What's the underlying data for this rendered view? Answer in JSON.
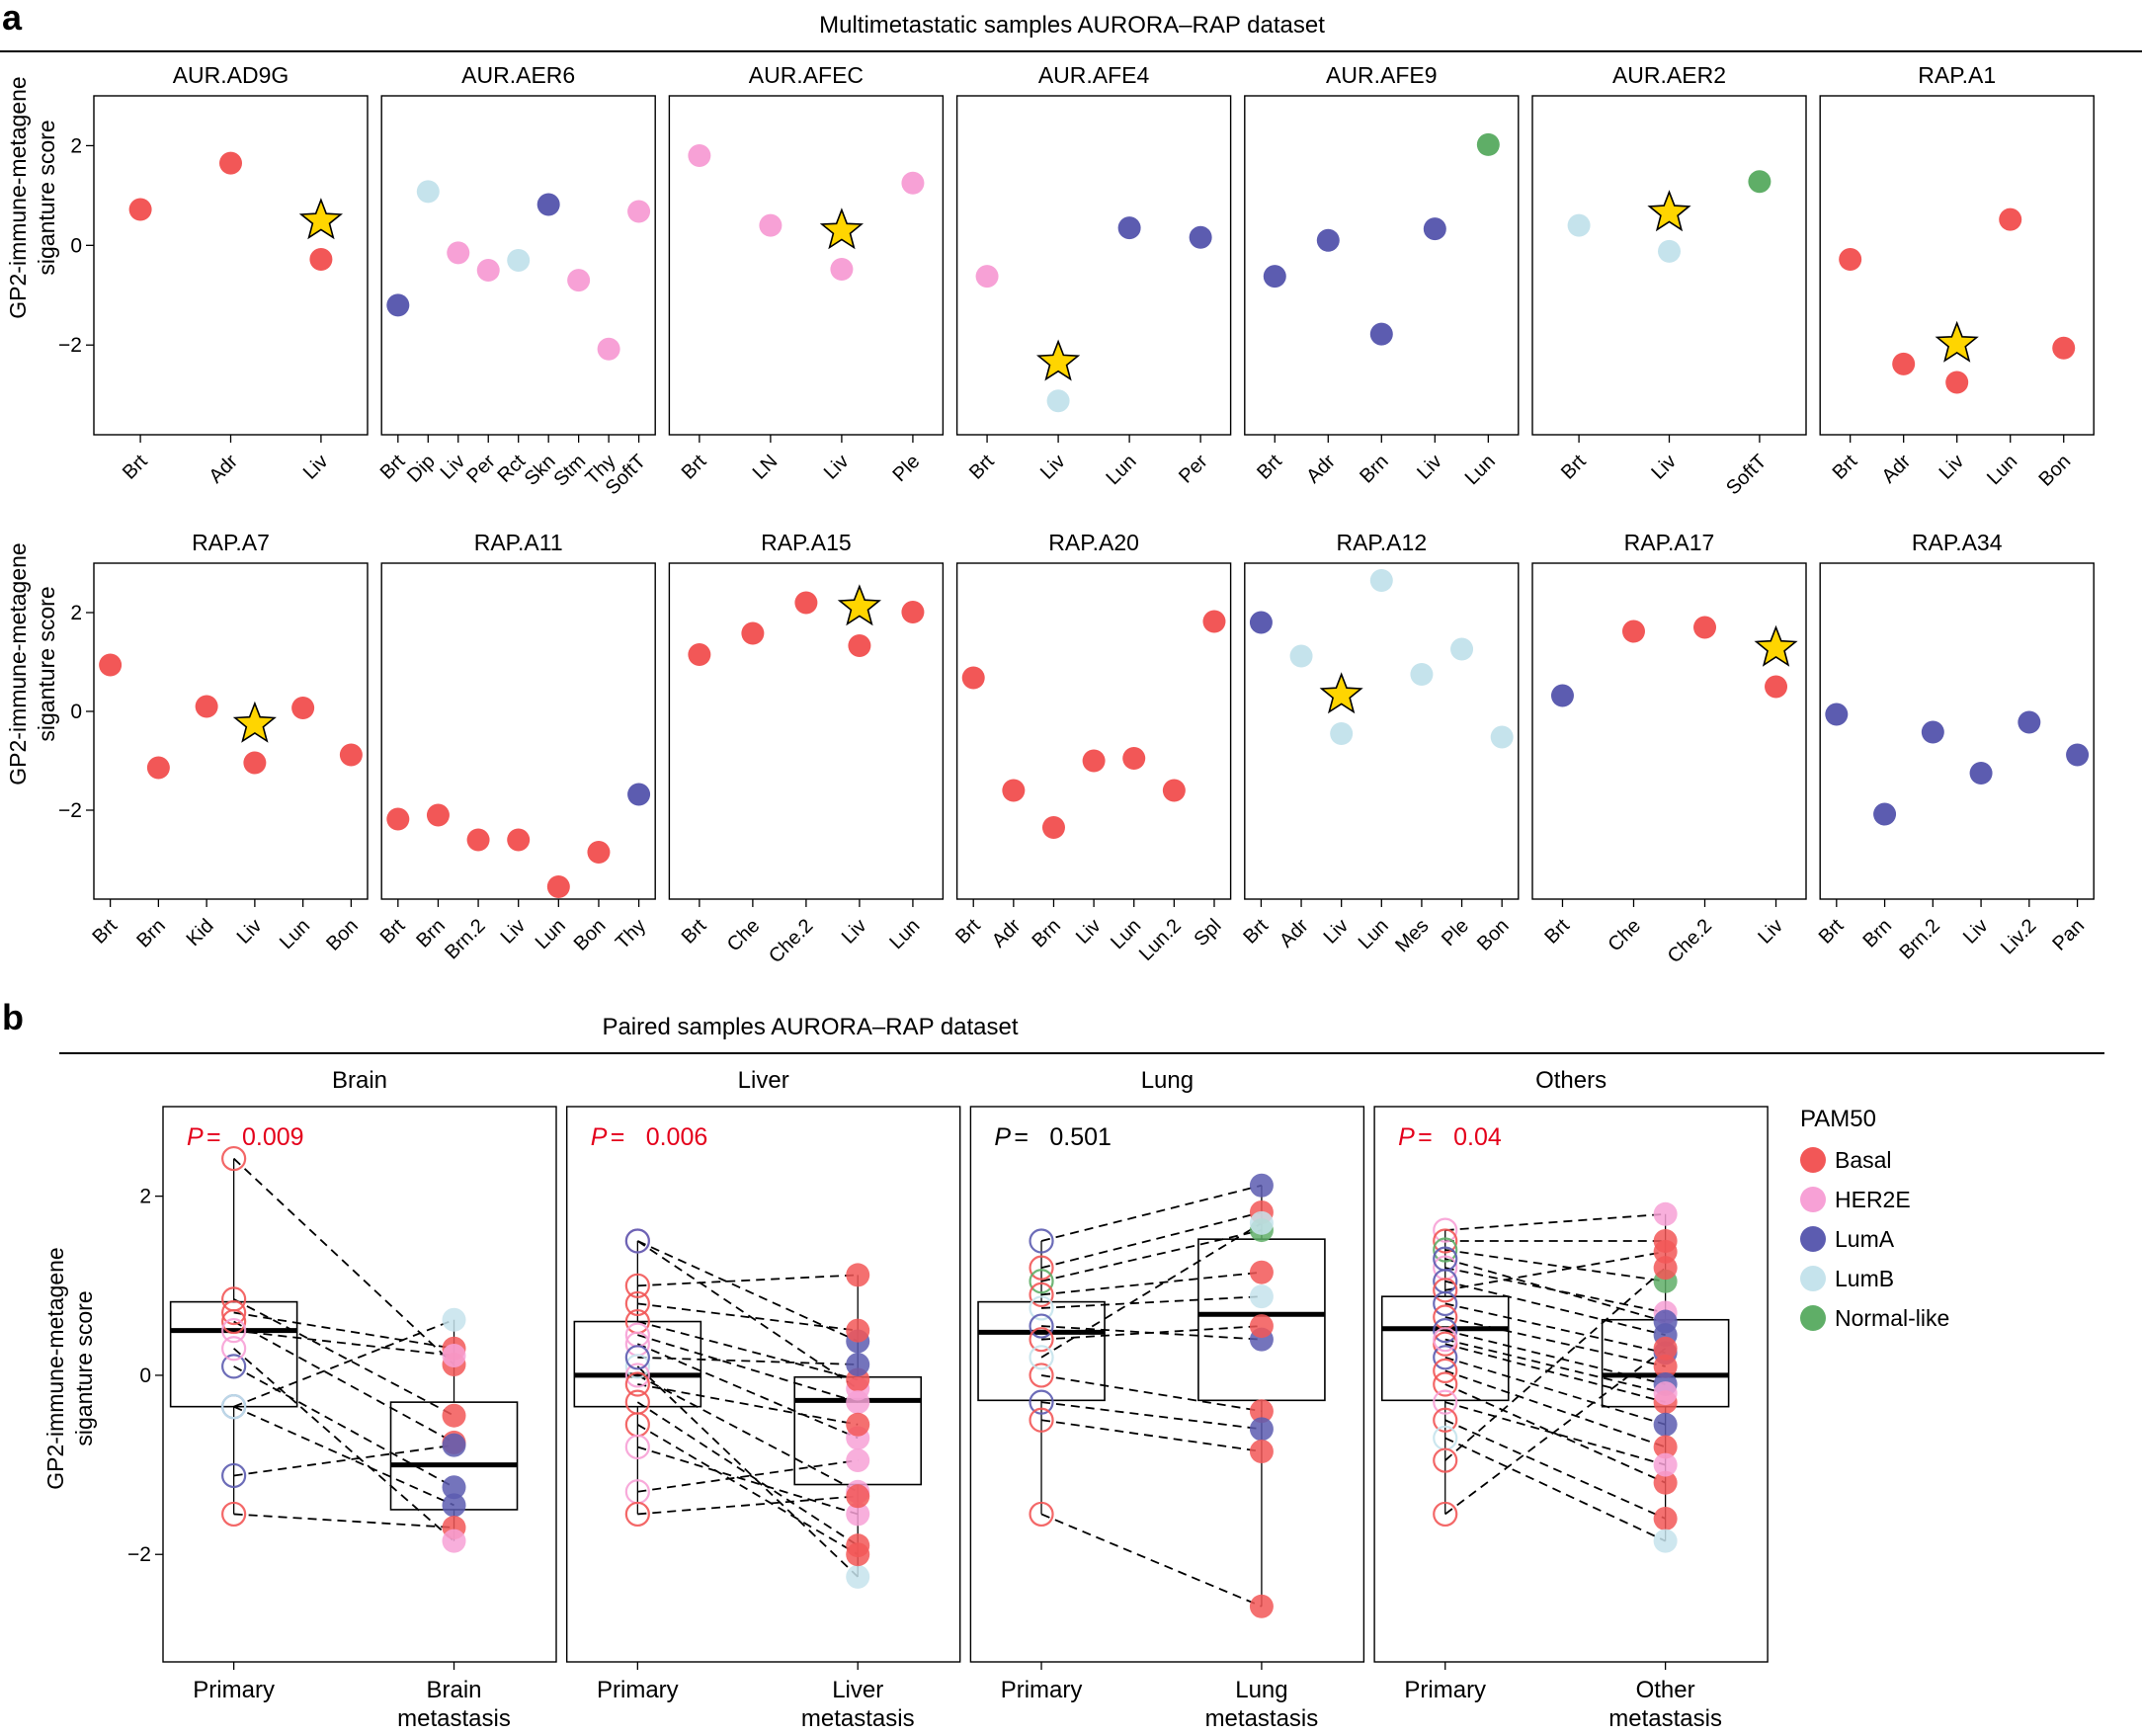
{
  "colors": {
    "Basal": "#f25757",
    "HER2E": "#f7a1d6",
    "LumA": "#5c5cb0",
    "LumB": "#c5e3ec",
    "Normal-like": "#5fae67",
    "star": "#ffd500",
    "p_significant": "#e4001b",
    "p_ns": "#000000"
  },
  "panel_a": {
    "letter": "a",
    "title": "Multimetastatic samples AURORA–RAP dataset",
    "ylabel_line1": "GP2-immune-metagene",
    "ylabel_line2": "siganture score"
  },
  "panel_b": {
    "letter": "b",
    "title": "Paired samples AURORA–RAP dataset",
    "ylabel_line1": "GP2-immune-metagene",
    "ylabel_line2": "siganture score",
    "p_prefix": "P =",
    "legend_title": "PAM50",
    "legend_items": [
      "Basal",
      "HER2E",
      "LumA",
      "LumB",
      "Normal-like"
    ]
  },
  "chart_data": [
    {
      "type": "scatter",
      "panel": "a",
      "title": "Multimetastatic samples AURORA–RAP dataset",
      "ylabel": "GP2-immune-metagene siganture score",
      "ylim": [
        -3.8,
        3.0
      ],
      "yticks": [
        -2,
        0,
        2
      ],
      "note": "Star marks the liver metastasis sample",
      "subplots": [
        {
          "title": "AUR.AD9G",
          "categories": [
            "Brt",
            "Adr",
            "Liv"
          ],
          "values": [
            0.72,
            1.65,
            -0.28
          ],
          "subtypes": [
            "Basal",
            "Basal",
            "Basal"
          ],
          "star": 2
        },
        {
          "title": "AUR.AER6",
          "categories": [
            "Brt",
            "Dip",
            "Liv",
            "Per",
            "Rct",
            "Skn",
            "Stm",
            "Thy",
            "SoftT"
          ],
          "values": [
            -1.2,
            1.08,
            -0.15,
            -0.5,
            -0.3,
            0.82,
            -0.7,
            -2.08,
            0.68
          ],
          "subtypes": [
            "LumA",
            "LumB",
            "HER2E",
            "HER2E",
            "LumB",
            "LumA",
            "HER2E",
            "HER2E",
            "HER2E"
          ],
          "star": null
        },
        {
          "title": "AUR.AFEC",
          "categories": [
            "Brt",
            "LN",
            "Liv",
            "Ple"
          ],
          "values": [
            1.8,
            0.4,
            -0.48,
            1.25
          ],
          "subtypes": [
            "HER2E",
            "HER2E",
            "HER2E",
            "HER2E"
          ],
          "star": 2
        },
        {
          "title": "AUR.AFE4",
          "categories": [
            "Brt",
            "Liv",
            "Lun",
            "Per"
          ],
          "values": [
            -0.62,
            -3.12,
            0.35,
            0.16
          ],
          "subtypes": [
            "HER2E",
            "LumB",
            "LumA",
            "LumA"
          ],
          "star": 1
        },
        {
          "title": "AUR.AFE9",
          "categories": [
            "Brt",
            "Adr",
            "Brn",
            "Liv",
            "Lun"
          ],
          "values": [
            -0.62,
            0.1,
            -1.78,
            0.33,
            2.02
          ],
          "subtypes": [
            "LumA",
            "LumA",
            "LumA",
            "LumA",
            "Normal-like"
          ],
          "star": null
        },
        {
          "title": "AUR.AER2",
          "categories": [
            "Brt",
            "Liv",
            "SoftT"
          ],
          "values": [
            0.4,
            -0.12,
            1.28
          ],
          "subtypes": [
            "LumB",
            "LumB",
            "Normal-like"
          ],
          "star": 1
        },
        {
          "title": "RAP.A1",
          "categories": [
            "Brt",
            "Adr",
            "Liv",
            "Lun",
            "Bon"
          ],
          "values": [
            -0.28,
            -2.38,
            -2.75,
            0.52,
            -2.06
          ],
          "subtypes": [
            "Basal",
            "Basal",
            "Basal",
            "Basal",
            "Basal"
          ],
          "star": 2
        },
        {
          "title": "RAP.A7",
          "categories": [
            "Brt",
            "Brn",
            "Kid",
            "Liv",
            "Lun",
            "Bon"
          ],
          "values": [
            0.94,
            -1.14,
            0.1,
            -1.04,
            0.07,
            -0.88
          ],
          "subtypes": [
            "Basal",
            "Basal",
            "Basal",
            "Basal",
            "Basal",
            "Basal"
          ],
          "star": 3
        },
        {
          "title": "RAP.A11",
          "categories": [
            "Brt",
            "Brn",
            "Brn.2",
            "Liv",
            "Lun",
            "Bon",
            "Thy"
          ],
          "values": [
            -2.18,
            -2.1,
            -2.6,
            -2.6,
            -3.55,
            -2.85,
            -1.68
          ],
          "subtypes": [
            "Basal",
            "Basal",
            "Basal",
            "Basal",
            "Basal",
            "Basal",
            "LumA"
          ],
          "star": null
        },
        {
          "title": "RAP.A15",
          "categories": [
            "Brt",
            "Che",
            "Che.2",
            "Liv",
            "Lun"
          ],
          "values": [
            1.15,
            1.58,
            2.2,
            1.33,
            2.01
          ],
          "subtypes": [
            "Basal",
            "Basal",
            "Basal",
            "Basal",
            "Basal"
          ],
          "star": 3
        },
        {
          "title": "RAP.A20",
          "categories": [
            "Brt",
            "Adr",
            "Brn",
            "Liv",
            "Lun",
            "Lun.2",
            "Spl"
          ],
          "values": [
            0.68,
            -1.6,
            -2.35,
            -1.0,
            -0.95,
            -1.6,
            1.82
          ],
          "subtypes": [
            "Basal",
            "Basal",
            "Basal",
            "Basal",
            "Basal",
            "Basal",
            "Basal"
          ],
          "star": null
        },
        {
          "title": "RAP.A12",
          "categories": [
            "Brt",
            "Adr",
            "Liv",
            "Lun",
            "Mes",
            "Ple",
            "Bon"
          ],
          "values": [
            1.8,
            1.12,
            -0.45,
            2.65,
            0.75,
            1.26,
            -0.52
          ],
          "subtypes": [
            "LumA",
            "LumB",
            "LumB",
            "LumB",
            "LumB",
            "LumB",
            "LumB"
          ],
          "star": 2
        },
        {
          "title": "RAP.A17",
          "categories": [
            "Brt",
            "Che",
            "Che.2",
            "Liv"
          ],
          "values": [
            0.32,
            1.62,
            1.7,
            0.5
          ],
          "subtypes": [
            "LumA",
            "Basal",
            "Basal",
            "Basal"
          ],
          "star": 3
        },
        {
          "title": "RAP.A34",
          "categories": [
            "Brt",
            "Brn",
            "Brn.2",
            "Liv",
            "Liv.2",
            "Pan"
          ],
          "values": [
            -0.06,
            -2.08,
            -0.42,
            -1.25,
            -0.22,
            -0.88
          ],
          "subtypes": [
            "LumA",
            "LumA",
            "LumA",
            "LumA",
            "LumA",
            "LumA"
          ],
          "star": null
        }
      ]
    },
    {
      "type": "boxplot",
      "panel": "b",
      "title": "Paired samples AURORA–RAP dataset",
      "ylabel": "GP2-immune-metagene siganture score",
      "ylim": [
        -3.2,
        3.0
      ],
      "yticks": [
        -2,
        0,
        2
      ],
      "legend": {
        "title": "PAM50",
        "items": [
          "Basal",
          "HER2E",
          "LumA",
          "LumB",
          "Normal-like"
        ]
      },
      "groups": [
        {
          "title": "Brain",
          "p_value": "0.009",
          "significant": true,
          "x_labels": [
            [
              "Primary"
            ],
            [
              "Brain",
              "metastasis"
            ]
          ],
          "boxes": [
            {
              "q1": -0.35,
              "median": 0.5,
              "q3": 0.82,
              "whisker_low": -1.55,
              "whisker_high": 2.42
            },
            {
              "q1": -1.5,
              "median": -1.0,
              "q3": -0.3,
              "whisker_low": -1.85,
              "whisker_high": 0.62
            }
          ],
          "pairs": [
            {
              "p": 2.42,
              "m": 0.12,
              "s": "Basal"
            },
            {
              "p": 0.85,
              "m": -0.45,
              "s": "Basal"
            },
            {
              "p": 0.7,
              "m": 0.3,
              "s": "Basal"
            },
            {
              "p": 0.6,
              "m": -0.75,
              "s": "Basal"
            },
            {
              "p": 0.5,
              "m": 0.22,
              "s": "HER2E"
            },
            {
              "p": 0.1,
              "m": -1.25,
              "s": "LumA"
            },
            {
              "p": -0.35,
              "m": -1.45,
              "s": "LumA"
            },
            {
              "p": -0.35,
              "m": 0.62,
              "s": "LumB"
            },
            {
              "p": -1.12,
              "m": -0.78,
              "s": "LumA"
            },
            {
              "p": -1.55,
              "m": -1.7,
              "s": "Basal"
            },
            {
              "p": 0.3,
              "m": -1.85,
              "s": "HER2E"
            }
          ]
        },
        {
          "title": "Liver",
          "p_value": "0.006",
          "significant": true,
          "x_labels": [
            [
              "Primary"
            ],
            [
              "Liver",
              "metastasis"
            ]
          ],
          "boxes": [
            {
              "q1": -0.35,
              "median": 0.0,
              "q3": 0.6,
              "whisker_low": -1.55,
              "whisker_high": 1.5
            },
            {
              "q1": -1.22,
              "median": -0.28,
              "q3": -0.02,
              "whisker_low": -2.25,
              "whisker_high": 1.12
            }
          ],
          "pairs": [
            {
              "p": 1.5,
              "m": -0.15,
              "s": "HER2E"
            },
            {
              "p": 1.5,
              "m": 0.38,
              "s": "LumA"
            },
            {
              "p": 1.0,
              "m": 1.12,
              "s": "Basal"
            },
            {
              "p": 0.8,
              "m": 0.5,
              "s": "Basal"
            },
            {
              "p": 0.6,
              "m": -0.05,
              "s": "Basal"
            },
            {
              "p": 0.45,
              "m": -0.3,
              "s": "HER2E"
            },
            {
              "p": 0.35,
              "m": -0.7,
              "s": "HER2E"
            },
            {
              "p": 0.1,
              "m": -2.25,
              "s": "LumB"
            },
            {
              "p": 0.0,
              "m": -1.3,
              "s": "HER2E"
            },
            {
              "p": -0.3,
              "m": -1.9,
              "s": "Basal"
            },
            {
              "p": -0.55,
              "m": -2.0,
              "s": "Basal"
            },
            {
              "p": -0.8,
              "m": -1.55,
              "s": "HER2E"
            },
            {
              "p": -1.3,
              "m": -0.95,
              "s": "HER2E"
            },
            {
              "p": -1.55,
              "m": -1.35,
              "s": "Basal"
            },
            {
              "p": 0.2,
              "m": 0.12,
              "s": "LumA"
            },
            {
              "p": -0.1,
              "m": -0.55,
              "s": "Basal"
            }
          ]
        },
        {
          "title": "Lung",
          "p_value": "0.501",
          "significant": false,
          "x_labels": [
            [
              "Primary"
            ],
            [
              "Lung",
              "metastasis"
            ]
          ],
          "boxes": [
            {
              "q1": -0.28,
              "median": 0.48,
              "q3": 0.82,
              "whisker_low": -1.55,
              "whisker_high": 1.5
            },
            {
              "q1": -0.28,
              "median": 0.68,
              "q3": 1.52,
              "whisker_low": -2.58,
              "whisker_high": 2.12
            }
          ],
          "pairs": [
            {
              "p": 1.5,
              "m": 2.12,
              "s": "LumA"
            },
            {
              "p": 1.2,
              "m": 1.82,
              "s": "Basal"
            },
            {
              "p": 1.05,
              "m": 1.62,
              "s": "Normal-like"
            },
            {
              "p": 0.9,
              "m": 1.15,
              "s": "Basal"
            },
            {
              "p": 0.75,
              "m": 0.88,
              "s": "LumB"
            },
            {
              "p": 0.55,
              "m": 0.4,
              "s": "LumA"
            },
            {
              "p": 0.4,
              "m": 0.55,
              "s": "Basal"
            },
            {
              "p": 0.0,
              "m": -0.4,
              "s": "Basal"
            },
            {
              "p": -0.3,
              "m": -0.6,
              "s": "LumA"
            },
            {
              "p": -0.5,
              "m": -0.85,
              "s": "Basal"
            },
            {
              "p": -1.55,
              "m": -2.58,
              "s": "Basal"
            },
            {
              "p": 0.2,
              "m": 1.7,
              "s": "LumB"
            }
          ]
        },
        {
          "title": "Others",
          "p_value": "0.04",
          "significant": true,
          "x_labels": [
            [
              "Primary"
            ],
            [
              "Other",
              "metastasis"
            ]
          ],
          "boxes": [
            {
              "q1": -0.28,
              "median": 0.52,
              "q3": 0.88,
              "whisker_low": -1.55,
              "whisker_high": 1.62
            },
            {
              "q1": -0.35,
              "median": 0.0,
              "q3": 0.62,
              "whisker_low": -1.85,
              "whisker_high": 1.8
            }
          ],
          "pairs": [
            {
              "p": 1.62,
              "m": 1.8,
              "s": "HER2E"
            },
            {
              "p": 1.5,
              "m": 1.5,
              "s": "Basal"
            },
            {
              "p": 1.4,
              "m": 1.05,
              "s": "Normal-like"
            },
            {
              "p": 1.2,
              "m": 0.7,
              "s": "HER2E"
            },
            {
              "p": 1.05,
              "m": 0.45,
              "s": "LumA"
            },
            {
              "p": 0.95,
              "m": 1.38,
              "s": "Basal"
            },
            {
              "p": 0.8,
              "m": 0.25,
              "s": "LumA"
            },
            {
              "p": 0.65,
              "m": 0.1,
              "s": "Basal"
            },
            {
              "p": 0.5,
              "m": -0.1,
              "s": "LumA"
            },
            {
              "p": 0.35,
              "m": -0.3,
              "s": "Basal"
            },
            {
              "p": 0.2,
              "m": -0.55,
              "s": "LumA"
            },
            {
              "p": 0.05,
              "m": -0.8,
              "s": "Basal"
            },
            {
              "p": -0.1,
              "m": -1.2,
              "s": "Basal"
            },
            {
              "p": -0.3,
              "m": -1.0,
              "s": "HER2E"
            },
            {
              "p": -0.5,
              "m": -1.6,
              "s": "Basal"
            },
            {
              "p": -0.7,
              "m": -1.85,
              "s": "LumB"
            },
            {
              "p": -0.95,
              "m": 1.2,
              "s": "Basal"
            },
            {
              "p": -1.55,
              "m": 0.3,
              "s": "Basal"
            },
            {
              "p": 1.3,
              "m": 0.6,
              "s": "LumA"
            },
            {
              "p": 0.4,
              "m": -0.2,
              "s": "HER2E"
            }
          ]
        }
      ]
    }
  ]
}
